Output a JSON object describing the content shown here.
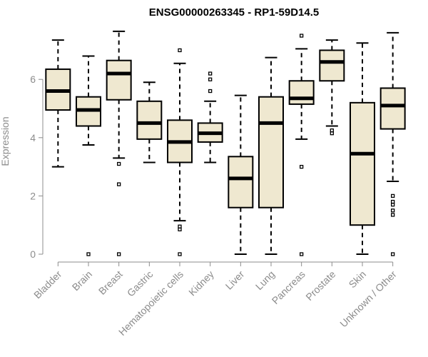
{
  "chart_data": {
    "type": "boxplot",
    "title": "ENSG00000263345 - RP1-59D14.5",
    "xlabel": "",
    "ylabel": "Expression",
    "ylim": [
      0,
      7.7
    ],
    "yticks": [
      0,
      2,
      4,
      6
    ],
    "grid": false,
    "legend": "none",
    "colors": {
      "box_fill": "#efe8d0",
      "stroke": "#000000",
      "axis_text": "#8c8c8c"
    },
    "categories": [
      "Bladder",
      "Brain",
      "Breast",
      "Gastric",
      "Hematopoietic cells",
      "Kidney",
      "Liver",
      "Lung",
      "Pancreas",
      "Prostate",
      "Skin",
      "Unknown / Other"
    ],
    "boxes": [
      {
        "category": "Bladder",
        "whisker_low": 3.0,
        "q1": 4.95,
        "median": 5.6,
        "q3": 6.35,
        "whisker_high": 7.35,
        "outliers": []
      },
      {
        "category": "Brain",
        "whisker_low": 3.75,
        "q1": 4.4,
        "median": 4.95,
        "q3": 5.4,
        "whisker_high": 6.8,
        "outliers": [
          0
        ]
      },
      {
        "category": "Breast",
        "whisker_low": 3.3,
        "q1": 5.3,
        "median": 6.2,
        "q3": 6.65,
        "whisker_high": 7.65,
        "outliers": [
          0,
          2.4,
          3.1
        ]
      },
      {
        "category": "Gastric",
        "whisker_low": 3.15,
        "q1": 3.95,
        "median": 4.5,
        "q3": 5.25,
        "whisker_high": 5.9,
        "outliers": []
      },
      {
        "category": "Hematopoietic cells",
        "whisker_low": 1.15,
        "q1": 3.15,
        "median": 3.85,
        "q3": 4.6,
        "whisker_high": 6.55,
        "outliers": [
          0,
          0.85,
          0.95,
          7.0
        ]
      },
      {
        "category": "Kidney",
        "whisker_low": 3.15,
        "q1": 3.85,
        "median": 4.15,
        "q3": 4.5,
        "whisker_high": 5.25,
        "outliers": [
          5.6,
          6.0,
          6.2
        ]
      },
      {
        "category": "Liver",
        "whisker_low": 0,
        "q1": 1.6,
        "median": 2.6,
        "q3": 3.35,
        "whisker_high": 5.45,
        "outliers": []
      },
      {
        "category": "Lung",
        "whisker_low": 0,
        "q1": 1.6,
        "median": 4.5,
        "q3": 5.4,
        "whisker_high": 6.75,
        "outliers": []
      },
      {
        "category": "Pancreas",
        "whisker_low": 3.95,
        "q1": 5.15,
        "median": 5.35,
        "q3": 5.95,
        "whisker_high": 7.05,
        "outliers": [
          0,
          3.0,
          7.5
        ]
      },
      {
        "category": "Prostate",
        "whisker_low": 4.4,
        "q1": 5.95,
        "median": 6.6,
        "q3": 7.0,
        "whisker_high": 7.35,
        "outliers": [
          4.15,
          4.25
        ]
      },
      {
        "category": "Skin",
        "whisker_low": 0,
        "q1": 1.0,
        "median": 3.45,
        "q3": 5.2,
        "whisker_high": 7.25,
        "outliers": []
      },
      {
        "category": "Unknown / Other",
        "whisker_low": 2.5,
        "q1": 4.3,
        "median": 5.1,
        "q3": 5.7,
        "whisker_high": 7.6,
        "outliers": [
          0,
          1.35,
          1.5,
          1.7,
          1.8,
          2.0
        ]
      }
    ]
  }
}
